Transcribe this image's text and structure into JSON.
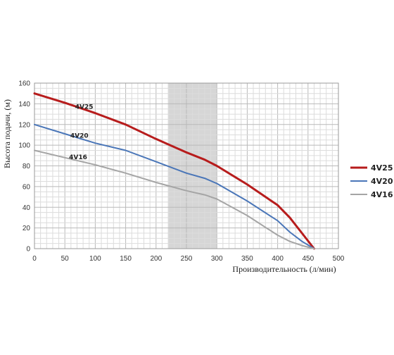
{
  "chart_data": {
    "type": "line",
    "xlabel": "Производительность (л/мин)",
    "ylabel": "Высота подачи, (м)",
    "xlim": [
      0,
      500
    ],
    "ylim": [
      0,
      160
    ],
    "x_ticks": [
      0,
      50,
      100,
      150,
      200,
      250,
      300,
      350,
      400,
      450,
      500
    ],
    "y_ticks": [
      0,
      20,
      40,
      60,
      80,
      100,
      120,
      140,
      160
    ],
    "grid": true,
    "legend_position": "right",
    "highlight_band": {
      "x_from": 220,
      "x_to": 300,
      "color": "#d6d6d6"
    },
    "series": [
      {
        "name": "4V25",
        "color": "#b71c1c",
        "x": [
          0,
          50,
          100,
          150,
          200,
          250,
          280,
          300,
          350,
          400,
          420,
          440,
          460
        ],
        "y": [
          150,
          141,
          131,
          120,
          106,
          93,
          86,
          80,
          62,
          42,
          30,
          15,
          0
        ]
      },
      {
        "name": "4V20",
        "color": "#4a76b8",
        "x": [
          0,
          50,
          100,
          150,
          200,
          250,
          280,
          300,
          350,
          400,
          420,
          440,
          460
        ],
        "y": [
          120,
          111,
          102,
          95,
          84,
          73,
          68,
          63,
          46,
          27,
          16,
          7,
          0
        ]
      },
      {
        "name": "4V16",
        "color": "#a5a5a5",
        "x": [
          0,
          50,
          100,
          150,
          200,
          250,
          280,
          300,
          350,
          400,
          420,
          440,
          460
        ],
        "y": [
          95,
          88,
          81,
          73,
          64,
          56,
          52,
          48,
          32,
          13,
          7,
          3,
          0
        ]
      }
    ]
  }
}
